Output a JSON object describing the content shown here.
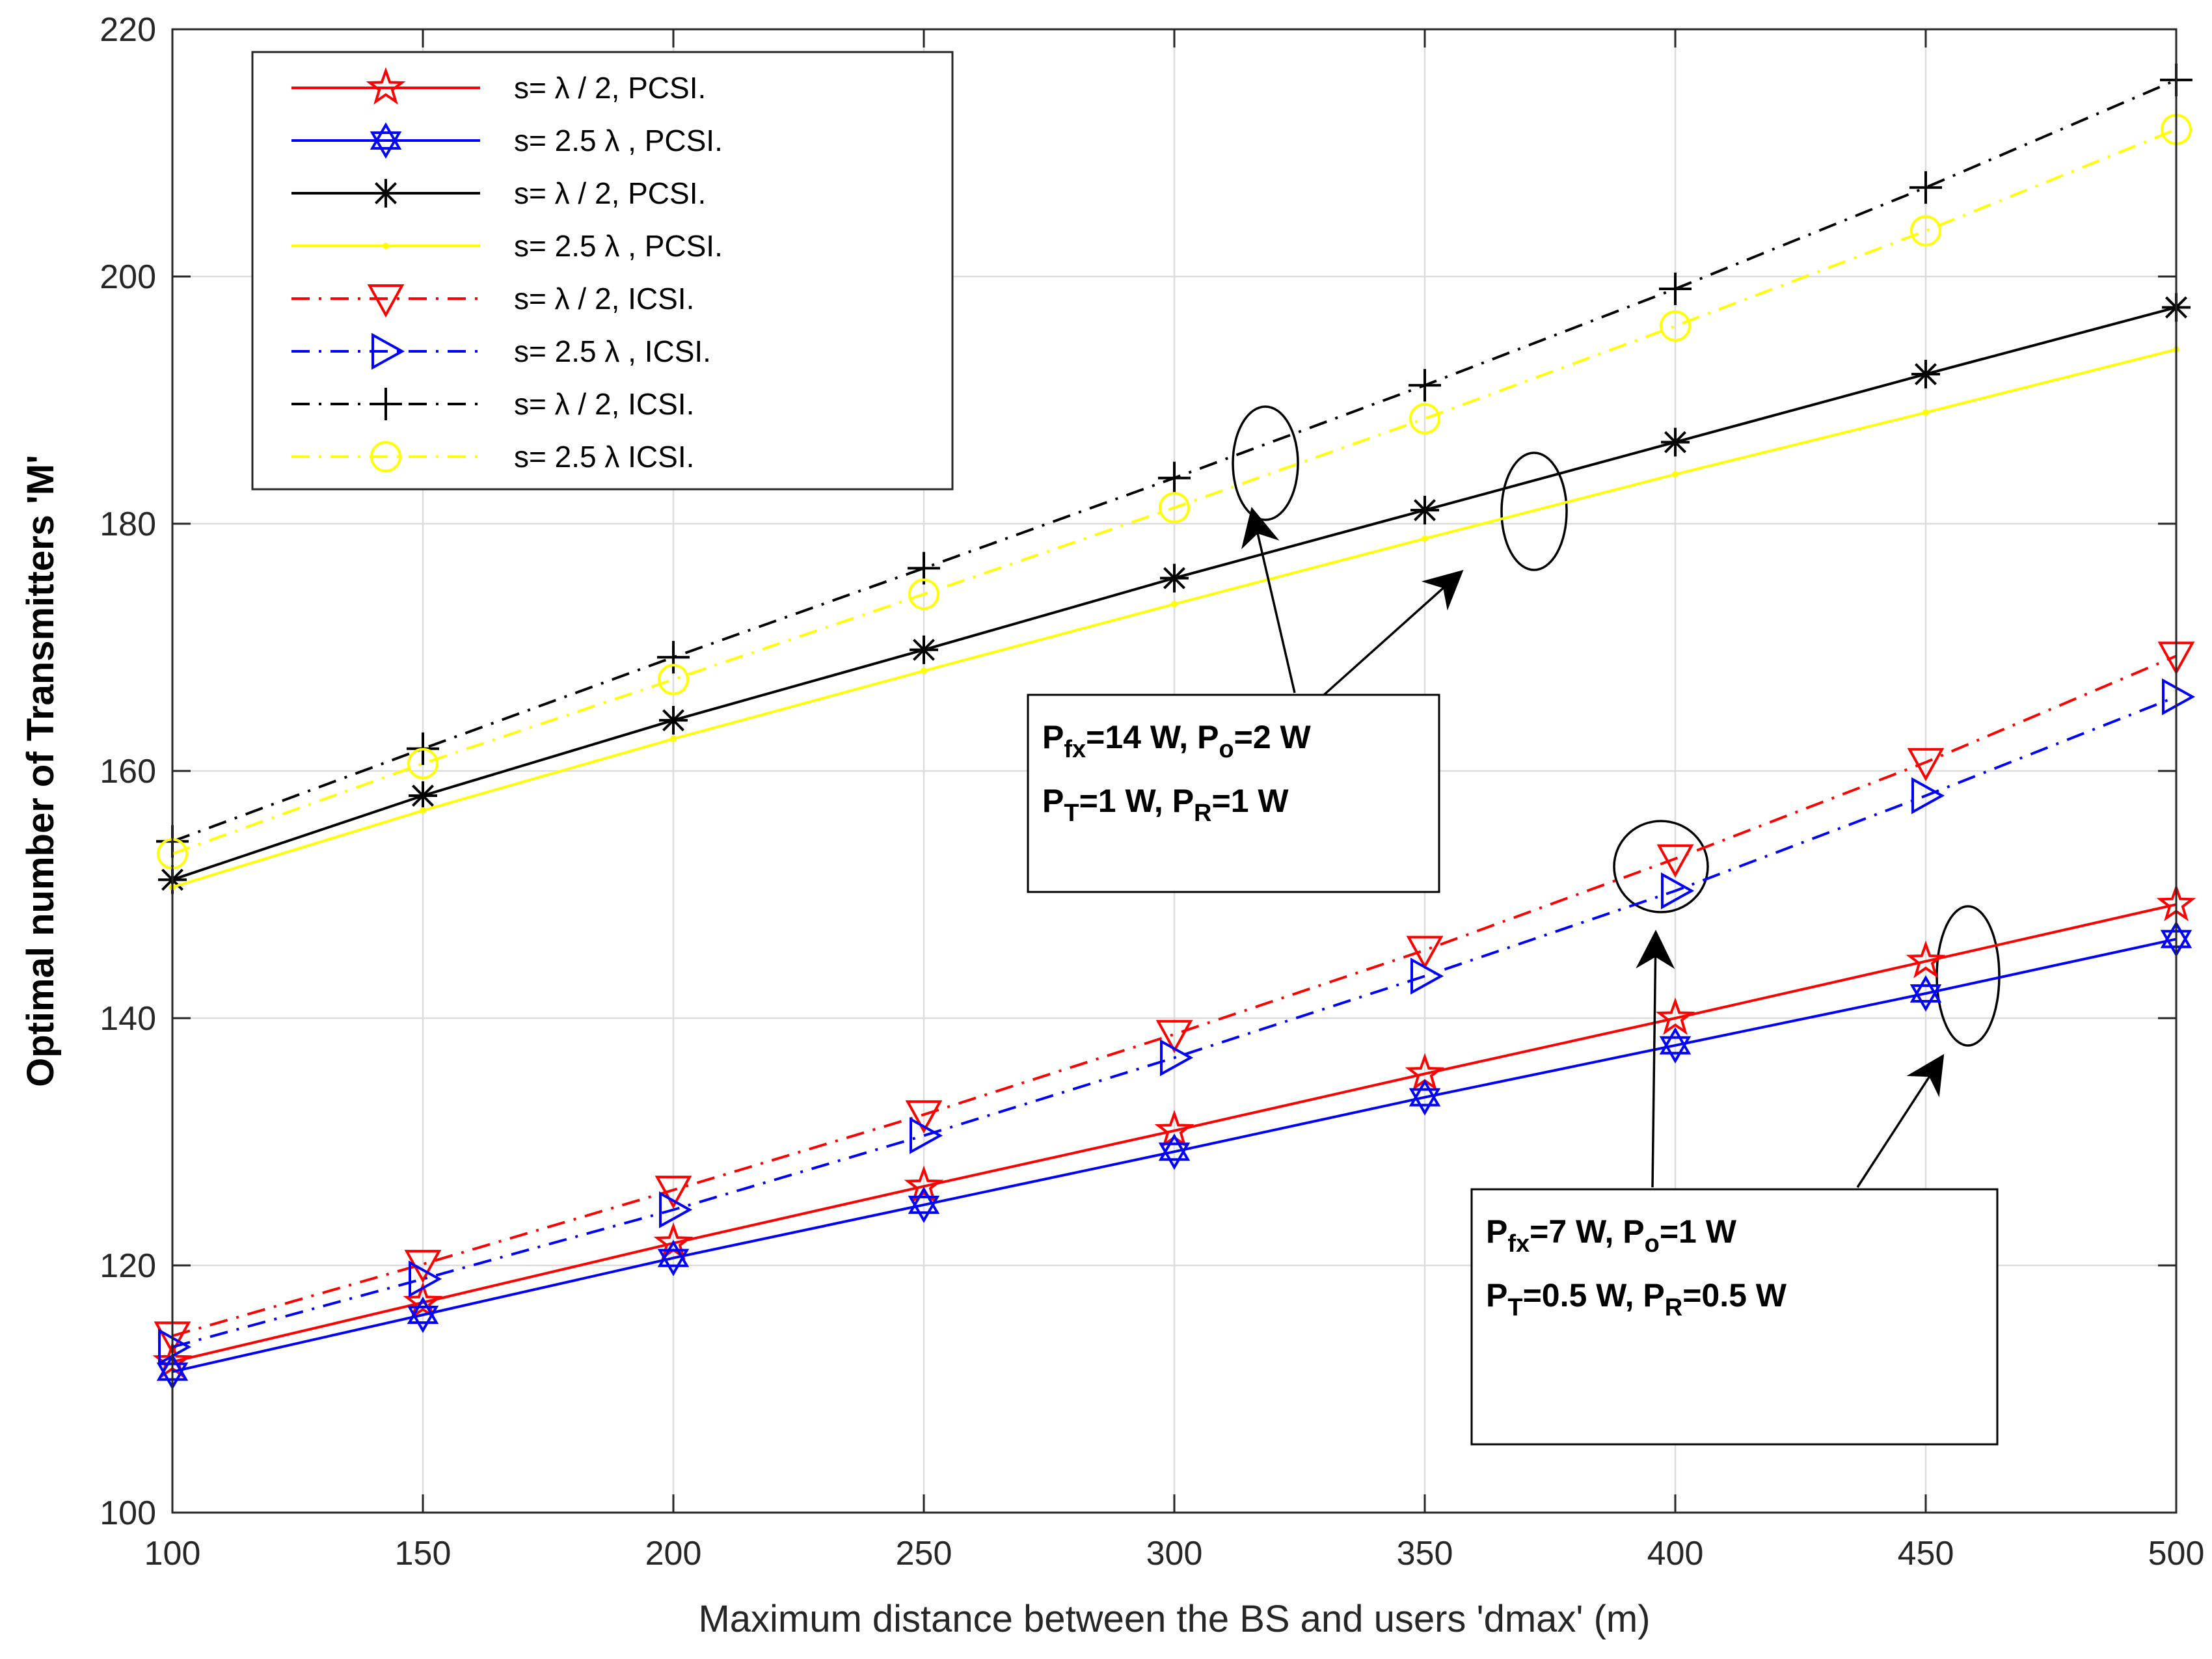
{
  "chart_data": {
    "type": "line",
    "title": "",
    "xlabel": "Maximum distance between the BS and users 'dmax' (m)",
    "ylabel": "Optimal number of Transmitters  'M'",
    "xlim": [
      100,
      500
    ],
    "ylim": [
      100,
      220
    ],
    "xticks": [
      100,
      150,
      200,
      250,
      300,
      350,
      400,
      450,
      500
    ],
    "yticks": [
      100,
      120,
      140,
      160,
      180,
      200,
      220
    ],
    "grid": true,
    "legend_position": "top-left",
    "x": [
      100,
      150,
      200,
      250,
      300,
      350,
      400,
      450,
      500
    ],
    "series": [
      {
        "name": "s= λ / 2, PCSI.",
        "color": "#ff0000",
        "line": "solid",
        "marker": "pentagram",
        "values": [
          112.2,
          117.0,
          121.8,
          126.4,
          130.9,
          135.5,
          140.0,
          144.6,
          149.2
        ]
      },
      {
        "name": "s= 2.5 λ , PCSI.",
        "color": "#0000ff",
        "line": "solid",
        "marker": "hexagram",
        "values": [
          111.4,
          116.0,
          120.6,
          124.9,
          129.2,
          133.6,
          137.8,
          142.0,
          146.4
        ]
      },
      {
        "name": "s= λ / 2, PCSI.",
        "color": "#000000",
        "line": "solid",
        "marker": "asterisk",
        "values": [
          151.2,
          158.0,
          164.1,
          169.8,
          175.6,
          181.1,
          186.6,
          192.1,
          197.5
        ]
      },
      {
        "name": "s= 2.5 λ , PCSI.",
        "color": "#ffff00",
        "line": "solid",
        "marker": "point",
        "values": [
          150.6,
          156.8,
          162.6,
          168.1,
          173.5,
          178.8,
          184.0,
          189.0,
          194.1
        ]
      },
      {
        "name": "s= λ / 2, ICSI.",
        "color": "#ff0000",
        "line": "dashdot",
        "marker": "triangle-down",
        "values": [
          114.3,
          120.1,
          126.1,
          132.2,
          138.7,
          145.5,
          152.9,
          160.7,
          169.3
        ]
      },
      {
        "name": "s= 2.5 λ , ICSI.",
        "color": "#0000ff",
        "line": "dashdot",
        "marker": "triangle-right",
        "values": [
          113.4,
          118.9,
          124.5,
          130.5,
          136.8,
          143.4,
          150.3,
          158.0,
          166.0
        ]
      },
      {
        "name": "s= λ / 2, ICSI.",
        "color": "#000000",
        "line": "dashdot",
        "marker": "plus",
        "values": [
          154.3,
          161.8,
          169.2,
          176.4,
          183.7,
          191.2,
          199.0,
          207.2,
          215.9
        ]
      },
      {
        "name": "s= 2.5 λ  ICSI.",
        "color": "#ffff00",
        "line": "dashdot",
        "marker": "circle",
        "values": [
          153.3,
          160.6,
          167.4,
          174.3,
          181.3,
          188.5,
          196.0,
          203.7,
          211.9
        ]
      }
    ],
    "annotations": [
      {
        "name": "upper-group",
        "line1": [
          {
            "t": "P",
            "s": ""
          },
          {
            "t": "fx",
            "s": "sub"
          },
          {
            "t": "=14 W, P",
            "s": ""
          },
          {
            "t": "o",
            "s": "sub"
          },
          {
            "t": "=2 W",
            "s": ""
          }
        ],
        "line2": [
          {
            "t": "P",
            "s": ""
          },
          {
            "t": "T",
            "s": "sub"
          },
          {
            "t": "=1 W, P",
            "s": ""
          },
          {
            "t": "R",
            "s": "sub"
          },
          {
            "t": "=1 W",
            "s": ""
          }
        ]
      },
      {
        "name": "lower-group",
        "line1": [
          {
            "t": "P",
            "s": ""
          },
          {
            "t": "fx",
            "s": "sub"
          },
          {
            "t": "=7 W, P",
            "s": ""
          },
          {
            "t": "o",
            "s": "sub"
          },
          {
            "t": "=1 W",
            "s": ""
          }
        ],
        "line2": [
          {
            "t": "P",
            "s": ""
          },
          {
            "t": "T",
            "s": "sub"
          },
          {
            "t": "=0.5 W, P",
            "s": ""
          },
          {
            "t": "R",
            "s": "sub"
          },
          {
            "t": "=0.5 W",
            "s": ""
          }
        ]
      }
    ]
  }
}
